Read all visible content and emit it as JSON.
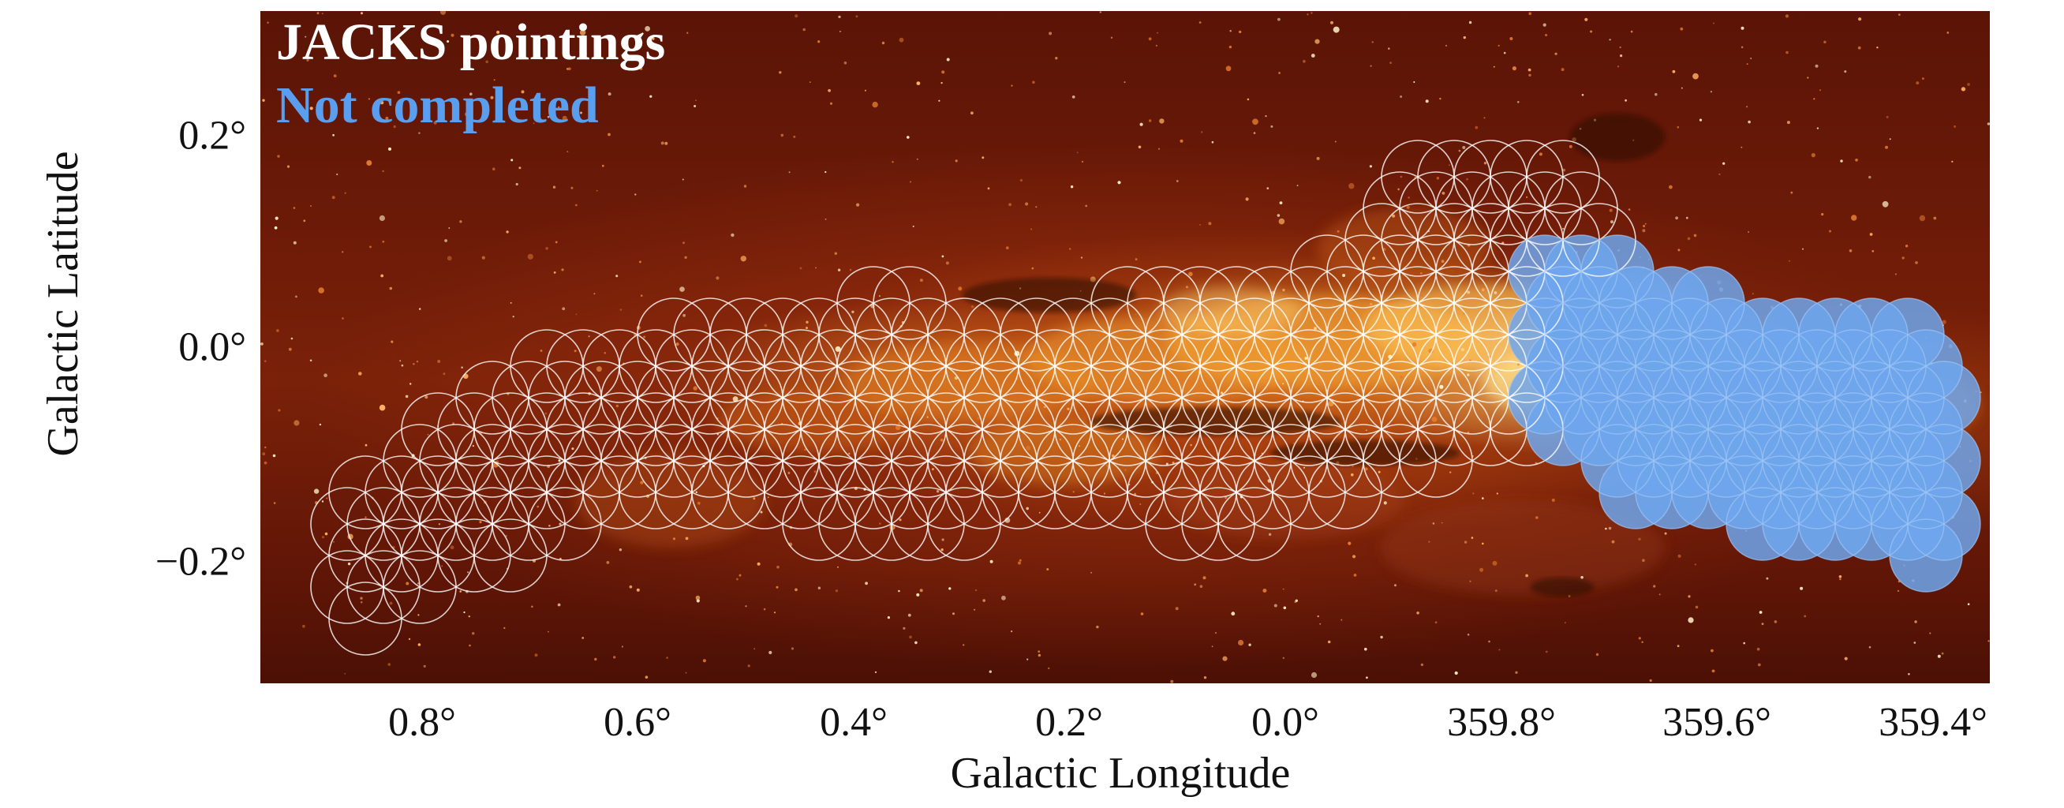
{
  "figure": {
    "legend": {
      "jacks_label": "JACKS pointings",
      "not_completed_label": "Not completed",
      "jacks_color": "#ffffff",
      "not_completed_color": "#5a9ef0"
    },
    "axes": {
      "xlabel": "Galactic Longitude",
      "ylabel": "Galactic Latitude",
      "x_ticks": [
        "0.8°",
        "0.6°",
        "0.4°",
        "0.2°",
        "0.0°",
        "359.8°",
        "359.6°",
        "359.4°"
      ],
      "y_ticks": [
        "0.2°",
        "0.0°",
        "−0.2°"
      ]
    },
    "colormap": "hot",
    "colors": {
      "background_dark": "#5a1406",
      "emission_bright": "#ffd27a",
      "pointing_outline": "#ffffff",
      "not_completed_fill": "#6fa6ec"
    }
  }
}
